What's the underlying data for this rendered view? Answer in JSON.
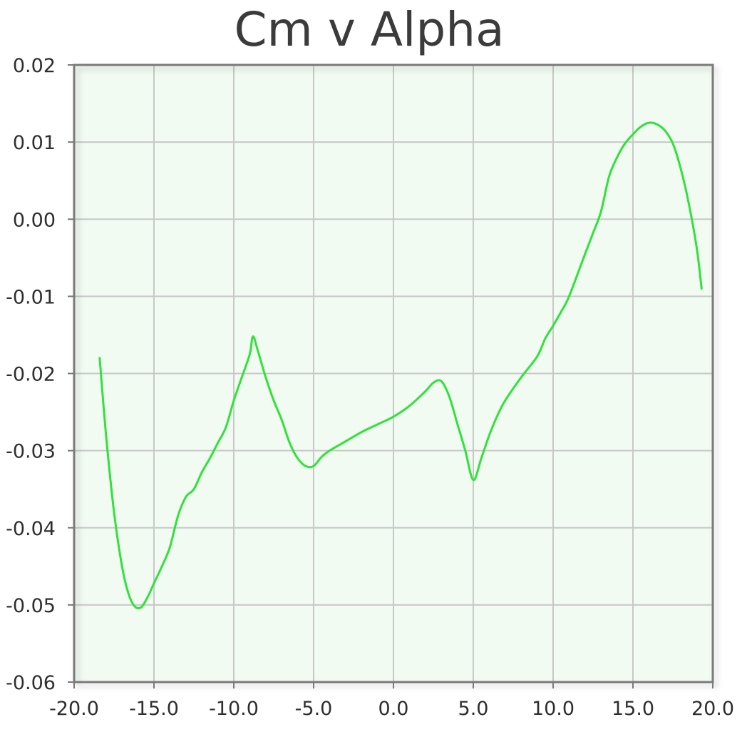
{
  "chart_data": {
    "type": "line",
    "title": "Cm v Alpha",
    "xlabel": "",
    "ylabel": "",
    "xlim": [
      -20,
      20
    ],
    "ylim": [
      -0.06,
      0.02
    ],
    "grid": true,
    "colors": {
      "series": "#33e03c",
      "plot_background": "#f1fbf2",
      "grid": "#c8c8c8",
      "frame": "#7a7a7a"
    },
    "x_ticks": [
      "-20.0",
      "-15.0",
      "-10.0",
      "-5.0",
      "0.0",
      "5.0",
      "10.0",
      "15.0",
      "20.0"
    ],
    "y_ticks": [
      "0.02",
      "0.01",
      "0.00",
      "-0.01",
      "-0.02",
      "-0.03",
      "-0.04",
      "-0.05",
      "-0.06"
    ],
    "x_tick_values": [
      -20,
      -15,
      -10,
      -5,
      0,
      5,
      10,
      15,
      20
    ],
    "y_tick_values": [
      0.02,
      0.01,
      0.0,
      -0.01,
      -0.02,
      -0.03,
      -0.04,
      -0.05,
      -0.06
    ],
    "series": [
      {
        "x": [
          -18.4,
          -18.0,
          -17.5,
          -17.0,
          -16.6,
          -16.2,
          -15.8,
          -15.4,
          -15.0,
          -14.5,
          -14.0,
          -13.5,
          -13.0,
          -12.5,
          -12.0,
          -11.5,
          -11.0,
          -10.5,
          -10.0,
          -9.5,
          -9.0,
          -8.8,
          -8.5,
          -8.0,
          -7.5,
          -7.0,
          -6.5,
          -6.0,
          -5.5,
          -5.0,
          -4.5,
          -4.0,
          -3.0,
          -2.0,
          -1.0,
          0.0,
          1.0,
          2.0,
          2.5,
          3.0,
          3.5,
          4.0,
          4.5,
          5.0,
          5.5,
          6.0,
          6.5,
          7.0,
          8.0,
          9.0,
          9.5,
          10.0,
          10.5,
          11.0,
          12.0,
          12.5,
          13.0,
          13.5,
          14.0,
          14.5,
          15.0,
          15.5,
          16.0,
          16.5,
          17.0,
          17.5,
          18.0,
          18.5,
          19.0,
          19.3
        ],
        "y": [
          -0.018,
          -0.028,
          -0.038,
          -0.045,
          -0.0485,
          -0.0502,
          -0.0503,
          -0.049,
          -0.0472,
          -0.045,
          -0.0425,
          -0.0385,
          -0.036,
          -0.035,
          -0.0328,
          -0.031,
          -0.029,
          -0.027,
          -0.0235,
          -0.0205,
          -0.0175,
          -0.0152,
          -0.017,
          -0.0205,
          -0.0235,
          -0.026,
          -0.029,
          -0.031,
          -0.032,
          -0.032,
          -0.0308,
          -0.03,
          -0.0288,
          -0.0276,
          -0.0266,
          -0.0256,
          -0.0242,
          -0.0223,
          -0.0212,
          -0.021,
          -0.023,
          -0.0265,
          -0.03,
          -0.0338,
          -0.031,
          -0.028,
          -0.0255,
          -0.0235,
          -0.0205,
          -0.0178,
          -0.0155,
          -0.0138,
          -0.012,
          -0.01,
          -0.0045,
          -0.0018,
          0.001,
          0.0055,
          0.008,
          0.0098,
          0.011,
          0.012,
          0.0125,
          0.0123,
          0.0115,
          0.0098,
          0.0065,
          0.002,
          -0.0038,
          -0.009
        ]
      }
    ]
  }
}
